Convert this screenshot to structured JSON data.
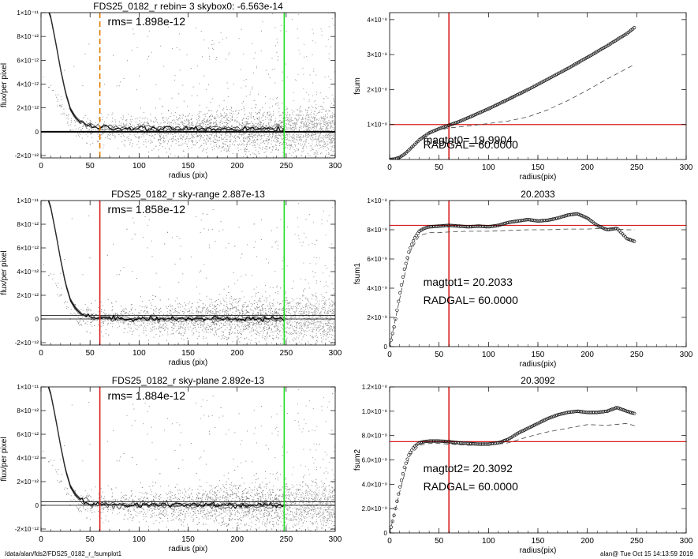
{
  "footer": {
    "left": "/data/alan/fds2/FDS25_0182_r_fsumplot1",
    "right": "alan@  Tue Oct 15 14:13:59 2019"
  },
  "chart_data": [
    {
      "type": "scatter",
      "title": "FDS25_0182_r rebin= 3    skybox0: -6.563e-14",
      "xlabel": "radius (pix)",
      "ylabel": "flux/per pixel",
      "xlim": [
        0,
        300
      ],
      "ylim": [
        -2.2e-12,
        1e-11
      ],
      "xticks": [
        0,
        50,
        100,
        150,
        200,
        250,
        300
      ],
      "xtick_labels": [
        "0",
        "50",
        "100",
        "150",
        "200",
        "250",
        "300"
      ],
      "yticks": [
        -2e-12,
        0,
        2e-12,
        4e-12,
        6e-12,
        8e-12,
        1e-11
      ],
      "ytick_labels": [
        "-2×10⁻¹²",
        "0",
        "2×10⁻¹²",
        "4×10⁻¹²",
        "6×10⁻¹²",
        "8×10⁻¹²",
        "1×10⁻¹¹"
      ],
      "annotations": [
        "rms= 1.898e-12"
      ],
      "vlines": [
        {
          "x": 60,
          "color": "#e07a00",
          "style": "dashed"
        },
        {
          "x": 248,
          "color": "#22dd22",
          "style": "solid"
        }
      ],
      "hlines": [
        {
          "y": 0,
          "color": "#000000",
          "thick": true
        }
      ],
      "profile": [
        [
          0,
          1.2e-11
        ],
        [
          10,
          9.6e-12
        ],
        [
          15,
          7.5e-12
        ],
        [
          20,
          5.2e-12
        ],
        [
          25,
          3.3e-12
        ],
        [
          30,
          1.9e-12
        ],
        [
          35,
          1.2e-12
        ],
        [
          40,
          8e-13
        ],
        [
          45,
          6e-13
        ],
        [
          50,
          4.5e-13
        ],
        [
          60,
          3.5e-13
        ],
        [
          80,
          3e-13
        ],
        [
          100,
          2.6e-13
        ],
        [
          150,
          2.4e-13
        ],
        [
          200,
          2.3e-13
        ],
        [
          248,
          2.2e-13
        ]
      ],
      "grey": false
    },
    {
      "type": "line",
      "title": "",
      "xlabel": "radius(pix)",
      "ylabel": "fsum",
      "xlim": [
        0,
        300
      ],
      "ylim": [
        0,
        4.2e-08
      ],
      "xticks": [
        0,
        50,
        100,
        150,
        200,
        250,
        300
      ],
      "xtick_labels": [
        "0",
        "50",
        "100",
        "150",
        "200",
        "250",
        "300"
      ],
      "yticks": [
        1e-08,
        2e-08,
        3e-08,
        4e-08
      ],
      "ytick_labels": [
        "1×10⁻⁸",
        "2×10⁻⁸",
        "3×10⁻⁸",
        "4×10⁻⁸"
      ],
      "vlines": [
        {
          "x": 60,
          "color": "#d81e1e"
        }
      ],
      "hlines": [
        {
          "y": 1e-08,
          "color": "#d81e1e"
        }
      ],
      "series": [
        {
          "style": "markers",
          "x": [
            0,
            5,
            10,
            15,
            20,
            25,
            30,
            40,
            50,
            60,
            70,
            80,
            100,
            120,
            140,
            160,
            180,
            200,
            220,
            240,
            248
          ],
          "y": [
            0,
            1e-10,
            6e-10,
            1.5e-09,
            2.8e-09,
            4.2e-09,
            5.6e-09,
            7.6e-09,
            8.8e-09,
            9.8e-09,
            1.08e-08,
            1.2e-08,
            1.45e-08,
            1.72e-08,
            2e-08,
            2.3e-08,
            2.6e-08,
            2.92e-08,
            3.25e-08,
            3.6e-08,
            3.78e-08
          ]
        },
        {
          "style": "dashed",
          "x": [
            0,
            10,
            20,
            30,
            40,
            50,
            60,
            80,
            100,
            120,
            140,
            160,
            180,
            200,
            220,
            248
          ],
          "y": [
            0,
            6e-10,
            2.8e-09,
            5.5e-09,
            7.4e-09,
            8.4e-09,
            9e-09,
            9.6e-09,
            1.03e-08,
            1.1e-08,
            1.22e-08,
            1.42e-08,
            1.68e-08,
            1.98e-08,
            2.3e-08,
            2.72e-08
          ]
        }
      ],
      "texts": [
        "magtot0=    19.9904",
        "RADGAL=     60.0000"
      ]
    },
    {
      "type": "scatter",
      "title": "FDS25_0182_r sky-range  2.887e-13",
      "xlabel": "radius (pix)",
      "ylabel": "flux/per pixel",
      "xlim": [
        0,
        300
      ],
      "ylim": [
        -2.2e-12,
        1e-11
      ],
      "xticks": [
        0,
        50,
        100,
        150,
        200,
        250,
        300
      ],
      "xtick_labels": [
        "0",
        "50",
        "100",
        "150",
        "200",
        "250",
        "300"
      ],
      "yticks": [
        -2e-12,
        0,
        2e-12,
        4e-12,
        6e-12,
        8e-12,
        1e-11
      ],
      "ytick_labels": [
        "-2×10⁻¹²",
        "0",
        "2×10⁻¹²",
        "4×10⁻¹²",
        "6×10⁻¹²",
        "8×10⁻¹²",
        "1×10⁻¹¹"
      ],
      "annotations": [
        "rms= 1.858e-12"
      ],
      "vlines": [
        {
          "x": 60,
          "color": "#d81e1e",
          "style": "solid"
        },
        {
          "x": 248,
          "color": "#22dd22",
          "style": "solid"
        }
      ],
      "hlines": [
        {
          "y": 3e-13,
          "color": "#000000"
        },
        {
          "y": 0,
          "color": "#000000"
        }
      ],
      "profile": [
        [
          0,
          1.2e-11
        ],
        [
          10,
          9.4e-12
        ],
        [
          15,
          7.3e-12
        ],
        [
          20,
          5e-12
        ],
        [
          25,
          3e-12
        ],
        [
          30,
          1.6e-12
        ],
        [
          35,
          9e-13
        ],
        [
          40,
          5e-13
        ],
        [
          45,
          3e-13
        ],
        [
          50,
          2e-13
        ],
        [
          60,
          1e-13
        ],
        [
          80,
          6e-14
        ],
        [
          100,
          4e-14
        ],
        [
          150,
          2e-14
        ],
        [
          200,
          1e-14
        ],
        [
          248,
          0
        ]
      ],
      "grey": true
    },
    {
      "type": "line",
      "title": "20.2033",
      "xlabel": "radius(pix)",
      "ylabel": "fsum1",
      "xlim": [
        0,
        300
      ],
      "ylim": [
        0,
        1e-08
      ],
      "xticks": [
        0,
        50,
        100,
        150,
        200,
        250,
        300
      ],
      "xtick_labels": [
        "0",
        "50",
        "100",
        "150",
        "200",
        "250",
        "300"
      ],
      "yticks": [
        0,
        2e-09,
        4e-09,
        6e-09,
        8e-09,
        1e-08
      ],
      "ytick_labels": [
        "0",
        "2×10⁻⁹",
        "4×10⁻⁹",
        "6×10⁻⁹",
        "8×10⁻⁹",
        "1×10⁻⁸"
      ],
      "vlines": [
        {
          "x": 60,
          "color": "#d81e1e"
        }
      ],
      "hlines": [
        {
          "y": 8.3e-09,
          "color": "#d81e1e"
        }
      ],
      "series": [
        {
          "style": "markers",
          "x": [
            0,
            5,
            10,
            15,
            20,
            25,
            30,
            35,
            40,
            50,
            60,
            70,
            80,
            90,
            100,
            110,
            120,
            130,
            140,
            150,
            160,
            170,
            180,
            190,
            200,
            210,
            220,
            230,
            240,
            248
          ],
          "y": [
            0,
            1.5e-09,
            3.5e-09,
            5.3e-09,
            6.6e-09,
            7.4e-09,
            7.9e-09,
            8.1e-09,
            8.2e-09,
            8.25e-09,
            8.3e-09,
            8.25e-09,
            8.2e-09,
            8.25e-09,
            8.2e-09,
            8.3e-09,
            8.5e-09,
            8.6e-09,
            8.7e-09,
            8.6e-09,
            8.65e-09,
            8.8e-09,
            9e-09,
            9.1e-09,
            8.8e-09,
            8.3e-09,
            8e-09,
            8.1e-09,
            7.4e-09,
            7.2e-09
          ]
        },
        {
          "style": "dashed",
          "x": [
            0,
            10,
            20,
            30,
            40,
            50,
            60,
            80,
            100,
            120,
            140,
            160,
            180,
            200,
            220,
            240,
            248
          ],
          "y": [
            0,
            3.2e-09,
            6.4e-09,
            7.6e-09,
            7.8e-09,
            7.8e-09,
            7.85e-09,
            7.9e-09,
            7.9e-09,
            7.95e-09,
            8e-09,
            8e-09,
            8.05e-09,
            8.05e-09,
            8.1e-09,
            8e-09,
            8e-09
          ]
        }
      ],
      "texts": [
        "magtot1=     20.2033",
        "RADGAL=     60.0000"
      ]
    },
    {
      "type": "scatter",
      "title": "FDS25_0182_r sky-plane  2.892e-13",
      "xlabel": "radius (pix)",
      "ylabel": "flux/per pixel",
      "xlim": [
        0,
        300
      ],
      "ylim": [
        -2.2e-12,
        1e-11
      ],
      "xticks": [
        0,
        50,
        100,
        150,
        200,
        250,
        300
      ],
      "xtick_labels": [
        "0",
        "50",
        "100",
        "150",
        "200",
        "250",
        "300"
      ],
      "yticks": [
        -2e-12,
        0,
        2e-12,
        4e-12,
        6e-12,
        8e-12,
        1e-11
      ],
      "ytick_labels": [
        "-2×10⁻¹²",
        "0",
        "2×10⁻¹²",
        "4×10⁻¹²",
        "6×10⁻¹²",
        "8×10⁻¹²",
        "1×10⁻¹¹"
      ],
      "annotations": [
        "rms= 1.884e-12"
      ],
      "vlines": [
        {
          "x": 60,
          "color": "#d81e1e",
          "style": "solid"
        },
        {
          "x": 248,
          "color": "#22dd22",
          "style": "solid"
        }
      ],
      "hlines": [
        {
          "y": 3e-13,
          "color": "#000000"
        },
        {
          "y": 0,
          "color": "#000000"
        }
      ],
      "profile": [
        [
          0,
          1.2e-11
        ],
        [
          10,
          9.4e-12
        ],
        [
          15,
          7.3e-12
        ],
        [
          20,
          5e-12
        ],
        [
          25,
          3e-12
        ],
        [
          30,
          1.6e-12
        ],
        [
          35,
          9e-13
        ],
        [
          40,
          5e-13
        ],
        [
          45,
          3e-13
        ],
        [
          50,
          2e-13
        ],
        [
          60,
          1e-13
        ],
        [
          80,
          6e-14
        ],
        [
          100,
          4e-14
        ],
        [
          150,
          2e-14
        ],
        [
          200,
          1e-14
        ],
        [
          248,
          0
        ]
      ],
      "grey": true
    },
    {
      "type": "line",
      "title": "20.3092",
      "xlabel": "radius(pix)",
      "ylabel": "fsum2",
      "xlim": [
        0,
        300
      ],
      "ylim": [
        0,
        1.2e-08
      ],
      "xticks": [
        0,
        50,
        100,
        150,
        200,
        250,
        300
      ],
      "xtick_labels": [
        "0",
        "50",
        "100",
        "150",
        "200",
        "250",
        "300"
      ],
      "yticks": [
        0,
        2e-09,
        4e-09,
        6e-09,
        8e-09,
        1e-08,
        1.2e-08
      ],
      "ytick_labels": [
        "0",
        "2.0×10⁻⁹",
        "4.0×10⁻⁹",
        "6.0×10⁻⁹",
        "8.0×10⁻⁹",
        "1.0×10⁻⁸",
        "1.2×10⁻⁸"
      ],
      "vlines": [
        {
          "x": 60,
          "color": "#d81e1e"
        }
      ],
      "hlines": [
        {
          "y": 7.5e-09,
          "color": "#d81e1e"
        }
      ],
      "series": [
        {
          "style": "markers",
          "x": [
            0,
            5,
            10,
            15,
            20,
            25,
            30,
            35,
            40,
            50,
            60,
            70,
            80,
            90,
            100,
            110,
            120,
            130,
            140,
            150,
            160,
            170,
            180,
            190,
            200,
            210,
            220,
            230,
            240,
            248
          ],
          "y": [
            0,
            1.6e-09,
            3.6e-09,
            5.4e-09,
            6.5e-09,
            7.1e-09,
            7.4e-09,
            7.5e-09,
            7.55e-09,
            7.55e-09,
            7.5e-09,
            7.4e-09,
            7.35e-09,
            7.3e-09,
            7.3e-09,
            7.4e-09,
            7.7e-09,
            8.2e-09,
            8.6e-09,
            9e-09,
            9.4e-09,
            9.7e-09,
            9.9e-09,
            1e-08,
            9.9e-09,
            9.9e-09,
            1e-08,
            1.03e-08,
            1e-08,
            9.8e-09
          ]
        },
        {
          "style": "dashed",
          "x": [
            0,
            10,
            20,
            30,
            40,
            50,
            60,
            80,
            100,
            120,
            140,
            160,
            180,
            200,
            220,
            240,
            248
          ],
          "y": [
            0,
            3.3e-09,
            6.3e-09,
            7.2e-09,
            7.35e-09,
            7.35e-09,
            7.3e-09,
            7.2e-09,
            7.2e-09,
            7.4e-09,
            7.9e-09,
            8.3e-09,
            8.6e-09,
            8.9e-09,
            8.85e-09,
            9e-09,
            8.8e-09
          ]
        }
      ],
      "texts": [
        "magtot2=     20.3092",
        "RADGAL=     60.0000"
      ]
    }
  ]
}
